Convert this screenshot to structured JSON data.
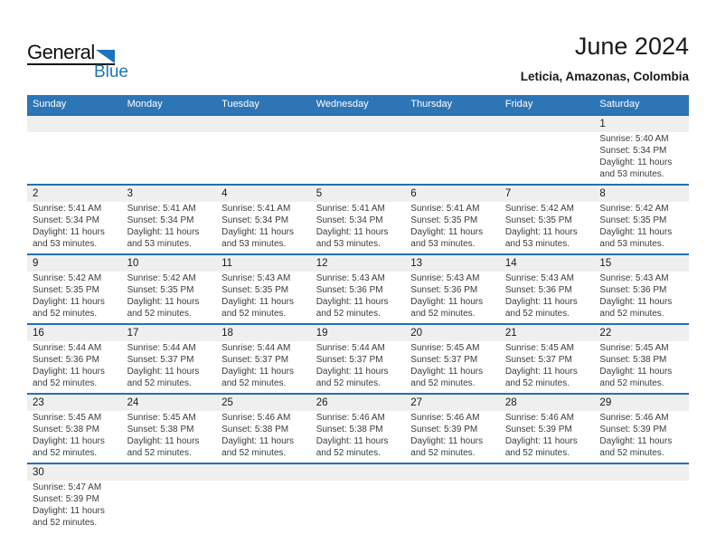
{
  "logo": {
    "line1": "General",
    "line2": "Blue"
  },
  "header": {
    "title": "June 2024",
    "location": "Leticia, Amazonas, Colombia"
  },
  "weekdays": [
    "Sunday",
    "Monday",
    "Tuesday",
    "Wednesday",
    "Thursday",
    "Friday",
    "Saturday"
  ],
  "labels": {
    "sunrise": "Sunrise:",
    "sunset": "Sunset:",
    "daylight": "Daylight:"
  },
  "colors": {
    "header_blue": "#2E75B6",
    "week_line_blue": "#2470B3",
    "number_band_gray": "#EFEFEF",
    "logo_blue": "#1C75BC"
  },
  "weeks": [
    [
      null,
      null,
      null,
      null,
      null,
      null,
      {
        "day": 1,
        "sunrise": "5:40 AM",
        "sunset": "5:34 PM",
        "daylight": "11 hours and 53 minutes."
      }
    ],
    [
      {
        "day": 2,
        "sunrise": "5:41 AM",
        "sunset": "5:34 PM",
        "daylight": "11 hours and 53 minutes."
      },
      {
        "day": 3,
        "sunrise": "5:41 AM",
        "sunset": "5:34 PM",
        "daylight": "11 hours and 53 minutes."
      },
      {
        "day": 4,
        "sunrise": "5:41 AM",
        "sunset": "5:34 PM",
        "daylight": "11 hours and 53 minutes."
      },
      {
        "day": 5,
        "sunrise": "5:41 AM",
        "sunset": "5:34 PM",
        "daylight": "11 hours and 53 minutes."
      },
      {
        "day": 6,
        "sunrise": "5:41 AM",
        "sunset": "5:35 PM",
        "daylight": "11 hours and 53 minutes."
      },
      {
        "day": 7,
        "sunrise": "5:42 AM",
        "sunset": "5:35 PM",
        "daylight": "11 hours and 53 minutes."
      },
      {
        "day": 8,
        "sunrise": "5:42 AM",
        "sunset": "5:35 PM",
        "daylight": "11 hours and 53 minutes."
      }
    ],
    [
      {
        "day": 9,
        "sunrise": "5:42 AM",
        "sunset": "5:35 PM",
        "daylight": "11 hours and 52 minutes."
      },
      {
        "day": 10,
        "sunrise": "5:42 AM",
        "sunset": "5:35 PM",
        "daylight": "11 hours and 52 minutes."
      },
      {
        "day": 11,
        "sunrise": "5:43 AM",
        "sunset": "5:35 PM",
        "daylight": "11 hours and 52 minutes."
      },
      {
        "day": 12,
        "sunrise": "5:43 AM",
        "sunset": "5:36 PM",
        "daylight": "11 hours and 52 minutes."
      },
      {
        "day": 13,
        "sunrise": "5:43 AM",
        "sunset": "5:36 PM",
        "daylight": "11 hours and 52 minutes."
      },
      {
        "day": 14,
        "sunrise": "5:43 AM",
        "sunset": "5:36 PM",
        "daylight": "11 hours and 52 minutes."
      },
      {
        "day": 15,
        "sunrise": "5:43 AM",
        "sunset": "5:36 PM",
        "daylight": "11 hours and 52 minutes."
      }
    ],
    [
      {
        "day": 16,
        "sunrise": "5:44 AM",
        "sunset": "5:36 PM",
        "daylight": "11 hours and 52 minutes."
      },
      {
        "day": 17,
        "sunrise": "5:44 AM",
        "sunset": "5:37 PM",
        "daylight": "11 hours and 52 minutes."
      },
      {
        "day": 18,
        "sunrise": "5:44 AM",
        "sunset": "5:37 PM",
        "daylight": "11 hours and 52 minutes."
      },
      {
        "day": 19,
        "sunrise": "5:44 AM",
        "sunset": "5:37 PM",
        "daylight": "11 hours and 52 minutes."
      },
      {
        "day": 20,
        "sunrise": "5:45 AM",
        "sunset": "5:37 PM",
        "daylight": "11 hours and 52 minutes."
      },
      {
        "day": 21,
        "sunrise": "5:45 AM",
        "sunset": "5:37 PM",
        "daylight": "11 hours and 52 minutes."
      },
      {
        "day": 22,
        "sunrise": "5:45 AM",
        "sunset": "5:38 PM",
        "daylight": "11 hours and 52 minutes."
      }
    ],
    [
      {
        "day": 23,
        "sunrise": "5:45 AM",
        "sunset": "5:38 PM",
        "daylight": "11 hours and 52 minutes."
      },
      {
        "day": 24,
        "sunrise": "5:45 AM",
        "sunset": "5:38 PM",
        "daylight": "11 hours and 52 minutes."
      },
      {
        "day": 25,
        "sunrise": "5:46 AM",
        "sunset": "5:38 PM",
        "daylight": "11 hours and 52 minutes."
      },
      {
        "day": 26,
        "sunrise": "5:46 AM",
        "sunset": "5:38 PM",
        "daylight": "11 hours and 52 minutes."
      },
      {
        "day": 27,
        "sunrise": "5:46 AM",
        "sunset": "5:39 PM",
        "daylight": "11 hours and 52 minutes."
      },
      {
        "day": 28,
        "sunrise": "5:46 AM",
        "sunset": "5:39 PM",
        "daylight": "11 hours and 52 minutes."
      },
      {
        "day": 29,
        "sunrise": "5:46 AM",
        "sunset": "5:39 PM",
        "daylight": "11 hours and 52 minutes."
      }
    ],
    [
      {
        "day": 30,
        "sunrise": "5:47 AM",
        "sunset": "5:39 PM",
        "daylight": "11 hours and 52 minutes."
      },
      null,
      null,
      null,
      null,
      null,
      null
    ]
  ]
}
